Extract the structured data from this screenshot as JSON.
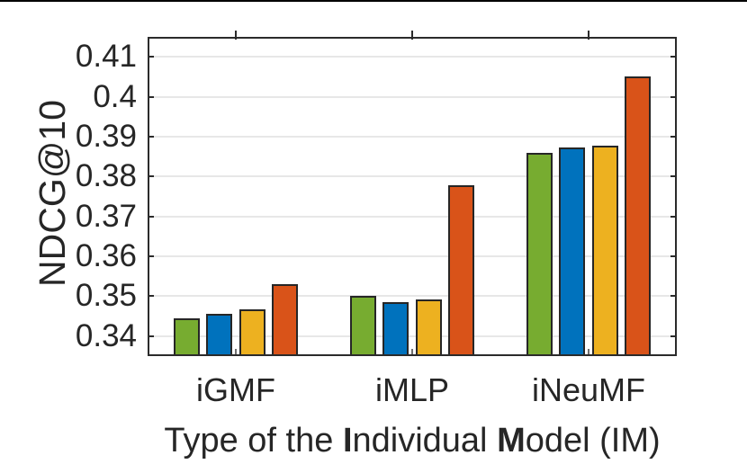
{
  "page": {
    "background": "#ffffff",
    "top_rule_color": "#000000"
  },
  "chart_data": {
    "type": "bar",
    "title": "",
    "xlabel": "Type of the Individual Model (IM)",
    "xlabel_rich": [
      {
        "text": "Type of the ",
        "bold": false
      },
      {
        "text": "I",
        "bold": true
      },
      {
        "text": "ndividual ",
        "bold": false
      },
      {
        "text": "M",
        "bold": true
      },
      {
        "text": "odel (IM)",
        "bold": false
      }
    ],
    "ylabel": "NDCG@10",
    "categories": [
      "iGMF",
      "iMLP",
      "iNeuMF"
    ],
    "series": [
      {
        "name": "series-1-green",
        "color": "#77AC30",
        "values": [
          0.3445,
          0.3501,
          0.386
        ]
      },
      {
        "name": "series-2-blue",
        "color": "#0072BD",
        "values": [
          0.3455,
          0.3486,
          0.3872
        ]
      },
      {
        "name": "series-3-yellow",
        "color": "#EDB120",
        "values": [
          0.3467,
          0.3493,
          0.3878
        ]
      },
      {
        "name": "series-4-orange",
        "color": "#D95319",
        "values": [
          0.353,
          0.3779,
          0.4051
        ]
      }
    ],
    "ylim": [
      0.335,
      0.415
    ],
    "yticks": [
      0.34,
      0.35,
      0.36,
      0.37,
      0.38,
      0.39,
      0.4,
      0.41
    ],
    "ytick_labels": [
      "0.34",
      "0.35",
      "0.36",
      "0.37",
      "0.38",
      "0.39",
      "0.4",
      "0.41"
    ],
    "grid": "horizontal",
    "legend_position": "none",
    "bar_edge_color": "#262626",
    "grid_color": "#e7e7e7",
    "axis_color": "#2b2b2b",
    "text_color": "#262626"
  }
}
